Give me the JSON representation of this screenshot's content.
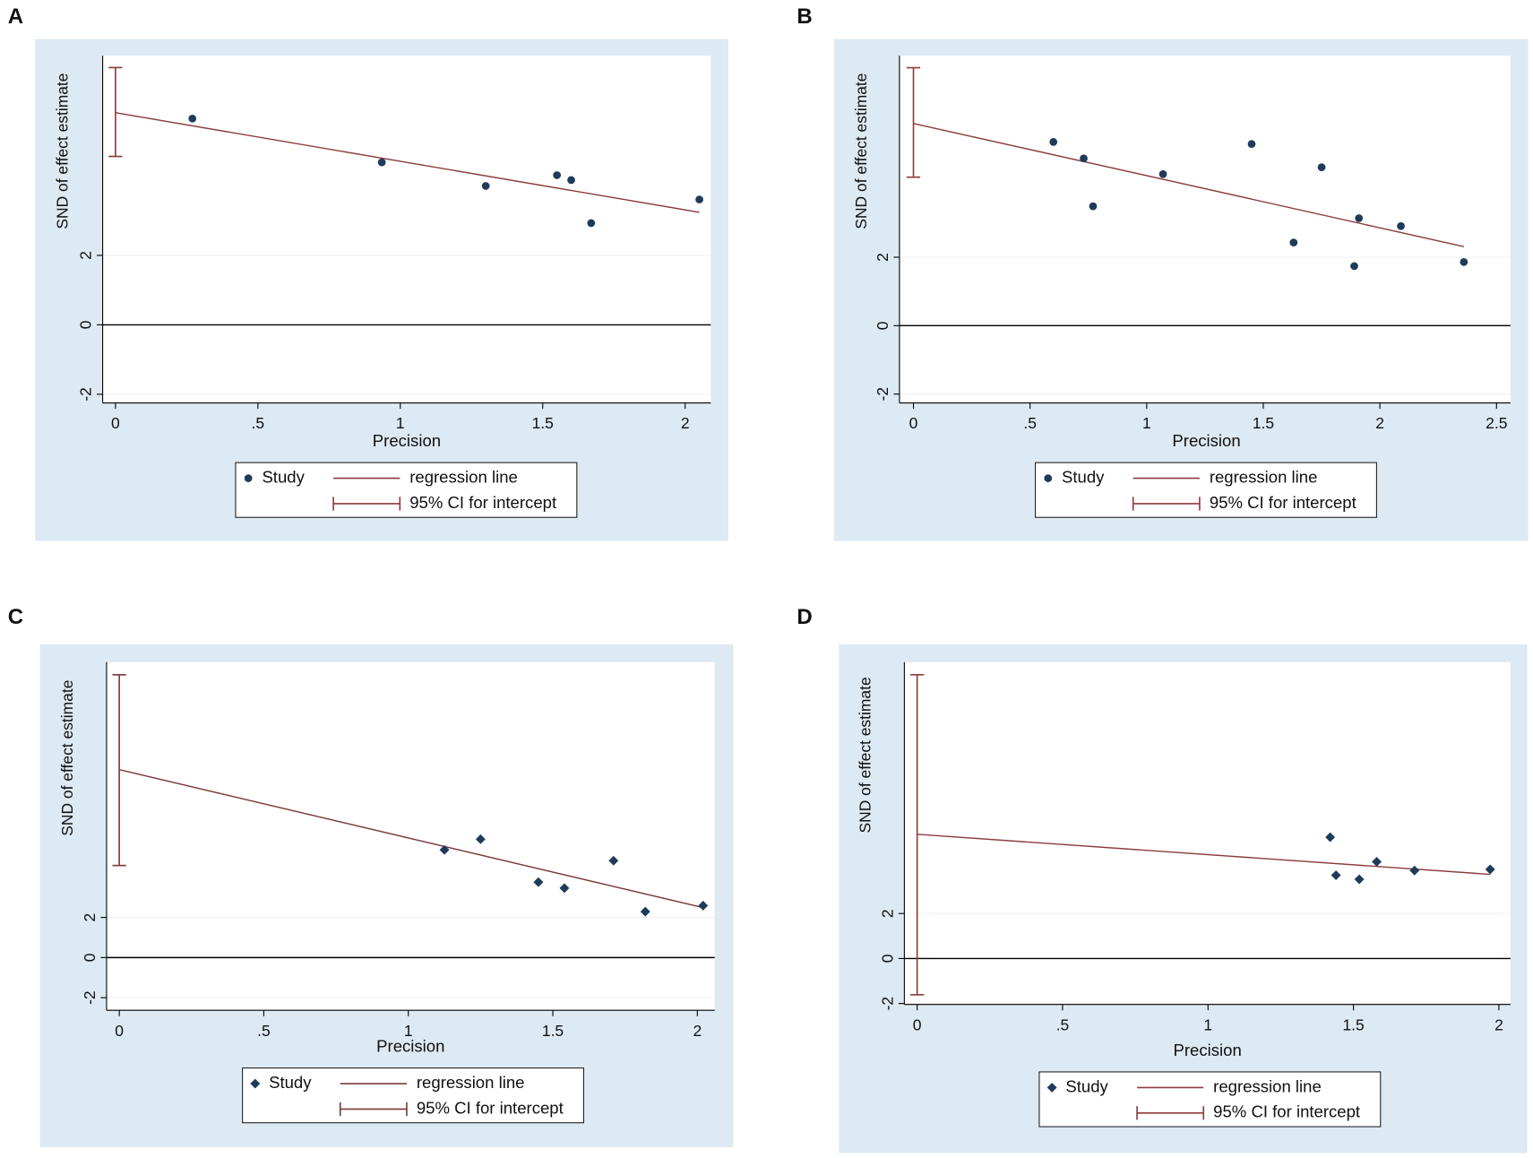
{
  "chart_data": [
    {
      "type": "scatter",
      "panel": "A",
      "xlabel": "Precision",
      "ylabel": "SND of effect estimate",
      "marker": "circle",
      "point_color": "#1f3b5a",
      "line_color": "#8c3c3c",
      "xlim": [
        -0.045,
        2.09
      ],
      "ylim": [
        -2.25,
        7.75
      ],
      "xticks": [
        0,
        {
          "value": 0.5,
          "label": ".5"
        },
        1,
        1.5,
        2
      ],
      "yticks": [
        -2,
        0,
        2
      ],
      "x": [
        0.27,
        0.935,
        1.3,
        1.55,
        1.6,
        1.67,
        2.05
      ],
      "y": [
        5.94,
        4.68,
        4.0,
        4.31,
        4.17,
        2.93,
        3.61
      ],
      "regression_line": {
        "x": [
          0,
          2.05
        ],
        "y": [
          6.11,
          3.24
        ]
      },
      "ci_intercept": [
        4.85,
        7.41
      ],
      "legend": [
        "Study",
        "regression line",
        "95% CI for intercept"
      ]
    },
    {
      "type": "scatter",
      "panel": "B",
      "xlabel": "Precision",
      "ylabel": "SND of effect estimate",
      "marker": "circle",
      "point_color": "#1f3b5a",
      "line_color": "#8c3c3c",
      "xlim": [
        -0.06,
        2.56
      ],
      "ylim": [
        -2.26,
        7.89
      ],
      "xticks": [
        0,
        {
          "value": 0.5,
          "label": ".5"
        },
        1,
        1.5,
        2,
        2.5
      ],
      "yticks": [
        -2,
        0,
        2
      ],
      "x": [
        0.6,
        0.73,
        0.77,
        1.07,
        1.45,
        1.63,
        1.75,
        1.91,
        1.89,
        2.09,
        2.36
      ],
      "y": [
        5.37,
        4.89,
        3.49,
        4.43,
        5.31,
        2.43,
        4.63,
        3.14,
        1.74,
        2.91,
        1.86
      ],
      "regression_line": {
        "x": [
          0,
          2.36
        ],
        "y": [
          5.91,
          2.31
        ]
      },
      "ci_intercept": [
        4.34,
        7.54
      ],
      "legend": [
        "Study",
        "regression line",
        "95% CI for intercept"
      ]
    },
    {
      "type": "scatter",
      "panel": "C",
      "xlabel": "Precision",
      "ylabel": "SND of effect estimate",
      "marker": "diamond",
      "point_color": "#1f3b5a",
      "line_color": "#7a3b3b",
      "xlim": [
        -0.044,
        2.06
      ],
      "ylim": [
        -2.63,
        14.73
      ],
      "xticks": [
        0,
        {
          "value": 0.5,
          "label": ".5"
        },
        1,
        1.5,
        2
      ],
      "yticks": [
        -2,
        0,
        2
      ],
      "x": [
        1.125,
        1.25,
        1.45,
        1.54,
        1.71,
        1.82,
        2.02
      ],
      "y": [
        5.37,
        5.9,
        3.76,
        3.46,
        4.83,
        2.29,
        2.59
      ],
      "regression_line": {
        "x": [
          0,
          2.02
        ],
        "y": [
          9.37,
          2.49
        ]
      },
      "ci_intercept": [
        4.59,
        14.1
      ],
      "legend": [
        "Study",
        "regression line",
        "95% CI for intercept"
      ]
    },
    {
      "type": "scatter",
      "panel": "D",
      "xlabel": "Precision",
      "ylabel": "SND of effect estimate",
      "marker": "diamond",
      "point_color": "#1f3b5a",
      "line_color": "#8c3c3c",
      "xlim": [
        -0.044,
        2.04
      ],
      "ylim": [
        -2.04,
        13.17
      ],
      "xticks": [
        0,
        {
          "value": 0.5,
          "label": ".5"
        },
        1,
        1.5,
        2
      ],
      "yticks": [
        -2,
        0,
        2
      ],
      "x": [
        1.42,
        1.44,
        1.52,
        1.58,
        1.71,
        1.97
      ],
      "y": [
        5.39,
        3.7,
        3.52,
        4.3,
        3.91,
        3.96
      ],
      "regression_line": {
        "x": [
          0,
          1.97
        ],
        "y": [
          5.52,
          3.74
        ]
      },
      "ci_intercept": [
        -1.61,
        12.61
      ],
      "legend": [
        "Study",
        "regression line",
        "95% CI for intercept"
      ]
    }
  ]
}
